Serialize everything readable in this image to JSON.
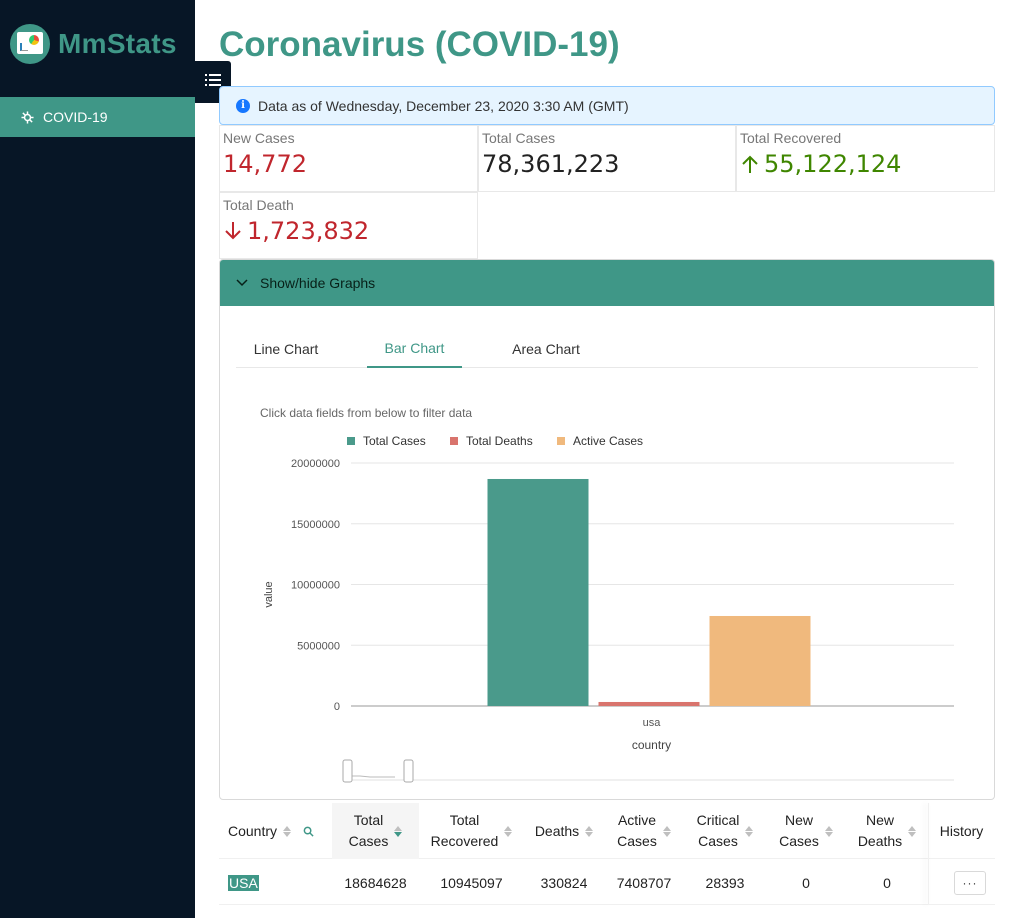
{
  "brand": {
    "name": "MmStats"
  },
  "sidebar": {
    "items": [
      {
        "label": "COVID-19",
        "icon": "virus-icon"
      }
    ]
  },
  "header": {
    "title": "Coronavirus (COVID-19)"
  },
  "info": {
    "text": "Data as of Wednesday, December 23, 2020 3:30 AM (GMT)"
  },
  "stats": {
    "new_cases": {
      "label": "New Cases",
      "value": "14,772"
    },
    "total_cases": {
      "label": "Total Cases",
      "value": "78,361,223"
    },
    "total_recovered": {
      "label": "Total Recovered",
      "value": "55,122,124"
    },
    "total_death": {
      "label": "Total Death",
      "value": "1,723,832"
    }
  },
  "colors": {
    "accent": "#3f9787",
    "sidebar": "#071626",
    "death_red": "#c0262d",
    "recovered_green": "#3f8600"
  },
  "graphs": {
    "toggle_label": "Show/hide Graphs",
    "tabs": [
      {
        "label": "Line Chart"
      },
      {
        "label": "Bar Chart",
        "active": true
      },
      {
        "label": "Area Chart"
      }
    ],
    "hint": "Click data fields from below to filter data"
  },
  "chart_data": {
    "type": "bar",
    "categories": [
      "usa"
    ],
    "series": [
      {
        "name": "Total Cases",
        "values": [
          18684628
        ],
        "color": "#4a9a8b"
      },
      {
        "name": "Total Deaths",
        "values": [
          330824
        ],
        "color": "#d9746d"
      },
      {
        "name": "Active Cases",
        "values": [
          7408707
        ],
        "color": "#f0b97d"
      }
    ],
    "xlabel": "country",
    "ylabel": "value",
    "ylim": [
      0,
      20000000
    ],
    "yticks": [
      "20000000",
      "15000000",
      "10000000",
      "5000000",
      "0"
    ],
    "grid": true,
    "legend": "top"
  },
  "table": {
    "headers": {
      "country": "Country",
      "total_cases": [
        "Total",
        "Cases"
      ],
      "total_recovered": [
        "Total",
        "Recovered"
      ],
      "deaths": "Deaths",
      "active_cases": [
        "Active",
        "Cases"
      ],
      "critical_cases": [
        "Critical",
        "Cases"
      ],
      "new_cases": [
        "New",
        "Cases"
      ],
      "new_deaths": [
        "New",
        "Deaths"
      ],
      "history": "History"
    },
    "rows": [
      {
        "country": "USA",
        "total_cases": "18684628",
        "total_recovered": "10945097",
        "deaths": "330824",
        "active_cases": "7408707",
        "critical_cases": "28393",
        "new_cases": "0",
        "new_deaths": "0",
        "history_button": "···"
      }
    ]
  }
}
